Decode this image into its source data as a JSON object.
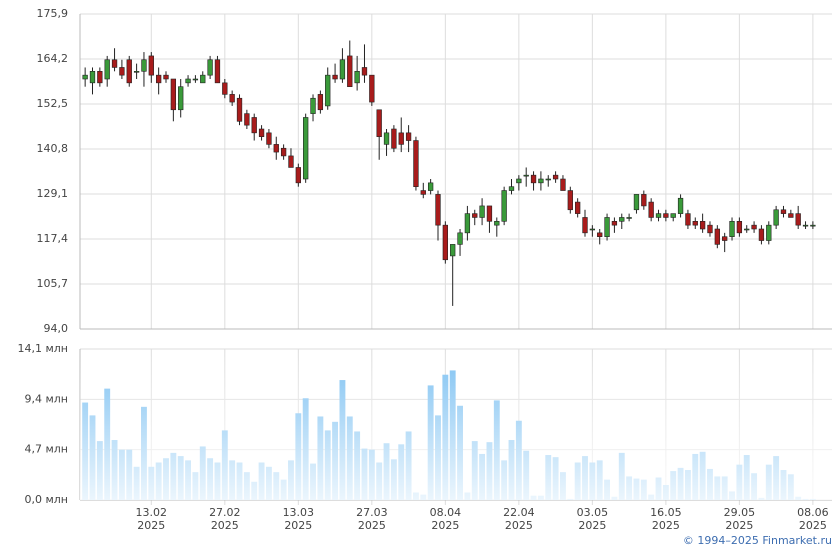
{
  "chart_data": {
    "type": "candlestick",
    "open": [
      159,
      158,
      161,
      159,
      164,
      162,
      164,
      161,
      161,
      165,
      160,
      160,
      159,
      151,
      158,
      159,
      158,
      160,
      164,
      158,
      155,
      154,
      150,
      149,
      146,
      145,
      142,
      141,
      139,
      136,
      133,
      150,
      155,
      152,
      160,
      159,
      165,
      158,
      162,
      160,
      151,
      142,
      146,
      145,
      145,
      143,
      130,
      130,
      129,
      121,
      113,
      116,
      119,
      124,
      123,
      126,
      121,
      122,
      130,
      132,
      134,
      134,
      132,
      133,
      134,
      133,
      130,
      127,
      123,
      120,
      119,
      118,
      122,
      122,
      123,
      125,
      129,
      127,
      123,
      124,
      123,
      124,
      124,
      122,
      122,
      121,
      120,
      118,
      118,
      122,
      120,
      121,
      120,
      117,
      121,
      125,
      124,
      124,
      121,
      121
    ],
    "high": [
      162,
      162,
      162,
      165,
      167,
      164,
      165,
      163,
      166,
      166,
      162,
      161,
      159,
      159,
      160,
      160,
      161,
      165,
      165,
      159,
      156,
      155,
      151,
      150,
      147,
      146,
      144,
      142,
      141,
      137,
      150,
      155,
      156,
      162,
      163,
      167,
      169,
      165,
      168,
      160,
      151,
      146,
      147,
      149,
      147,
      144,
      132,
      133,
      130,
      122,
      116,
      120,
      126,
      125,
      128,
      126,
      123,
      131,
      133,
      134,
      136,
      135,
      135,
      134,
      135,
      134,
      131,
      128,
      125,
      121,
      120,
      124,
      123,
      124,
      124,
      129,
      130,
      128,
      125,
      125,
      124,
      129,
      125,
      123,
      124,
      122,
      121,
      119,
      123,
      123,
      121,
      122,
      121,
      122,
      126,
      126,
      125,
      126,
      122,
      122
    ],
    "low": [
      157,
      155,
      157,
      157,
      161,
      159,
      157,
      159,
      157,
      158,
      155,
      158,
      148,
      149,
      157,
      158,
      158,
      159,
      158,
      154,
      152,
      147,
      146,
      143,
      143,
      141,
      138,
      138,
      136,
      131,
      132,
      148,
      150,
      151,
      158,
      158,
      157,
      156,
      158,
      152,
      138,
      139,
      140,
      140,
      140,
      130,
      128,
      129,
      117,
      111,
      100,
      113,
      117,
      121,
      121,
      119,
      118,
      121,
      129,
      130,
      131,
      130,
      130,
      131,
      132,
      130,
      124,
      123,
      118,
      118,
      116,
      117,
      119,
      120,
      122,
      124,
      125,
      122,
      122,
      122,
      122,
      123,
      120,
      120,
      119,
      118,
      115,
      114,
      117,
      118,
      119,
      119,
      116,
      116,
      120,
      123,
      123,
      120,
      120,
      120
    ],
    "close": [
      160,
      161,
      158,
      164,
      162,
      160,
      158,
      161,
      164,
      160,
      158,
      159,
      151,
      157,
      159,
      159,
      160,
      164,
      158,
      155,
      153,
      148,
      147,
      145,
      144,
      142,
      140,
      139,
      136,
      132,
      149,
      154,
      151,
      160,
      159,
      164,
      157,
      161,
      160,
      153,
      144,
      145,
      141,
      142,
      143,
      131,
      129,
      132,
      121,
      112,
      116,
      119,
      124,
      123,
      126,
      122,
      122,
      130,
      131,
      133,
      134,
      132,
      133,
      133,
      133,
      130,
      125,
      124,
      119,
      120,
      118,
      123,
      121,
      123,
      123,
      129,
      126,
      123,
      124,
      123,
      124,
      128,
      121,
      121,
      120,
      119,
      116,
      117,
      122,
      119,
      120,
      120,
      117,
      121,
      125,
      124,
      123,
      121,
      121,
      121
    ],
    "up_color": "#3a9a3a",
    "down_color": "#a81c1c",
    "xlim": [
      -0.7,
      101.6
    ],
    "xticks": [
      {
        "value": 9,
        "label": "13.02\n2025"
      },
      {
        "value": 19,
        "label": "27.02\n2025"
      },
      {
        "value": 29,
        "label": "13.03\n2025"
      },
      {
        "value": 39,
        "label": "27.03\n2025"
      },
      {
        "value": 49,
        "label": "08.04\n2025"
      },
      {
        "value": 59,
        "label": "22.04\n2025"
      },
      {
        "value": 69,
        "label": "03.05\n2025"
      },
      {
        "value": 79,
        "label": "16.05\n2025"
      },
      {
        "value": 89,
        "label": "29.05\n2025"
      },
      {
        "value": 99,
        "label": "08.06\n2025"
      }
    ],
    "ylim": [
      94.0,
      175.9
    ],
    "yticks": [
      {
        "value": 94.0,
        "label": "94,0"
      },
      {
        "value": 105.7,
        "label": "105,7"
      },
      {
        "value": 117.4,
        "label": "117,4"
      },
      {
        "value": 129.1,
        "label": "129,1"
      },
      {
        "value": 140.8,
        "label": "140,8"
      },
      {
        "value": 152.5,
        "label": "152,5"
      },
      {
        "value": 164.2,
        "label": "164,2"
      },
      {
        "value": 175.9,
        "label": "175,9"
      }
    ],
    "grid": true,
    "volume": {
      "color": "#7fc2f2",
      "values": [
        9.1,
        7.9,
        5.5,
        10.4,
        5.6,
        4.7,
        4.7,
        3.1,
        8.7,
        3.1,
        3.5,
        3.9,
        4.4,
        4.1,
        3.7,
        2.6,
        5.0,
        3.9,
        3.5,
        6.5,
        3.7,
        3.5,
        2.6,
        1.7,
        3.5,
        3.1,
        2.6,
        1.9,
        3.7,
        8.1,
        9.5,
        3.4,
        7.8,
        6.5,
        7.3,
        11.2,
        7.8,
        6.4,
        4.8,
        4.7,
        3.5,
        5.3,
        3.8,
        5.2,
        6.4,
        0.7,
        0.5,
        10.7,
        7.9,
        11.7,
        12.1,
        8.8,
        0.7,
        5.5,
        4.3,
        5.4,
        9.3,
        3.7,
        5.6,
        7.4,
        4.6,
        0.4,
        0.4,
        4.2,
        4.0,
        2.6,
        0.1,
        3.5,
        4.1,
        3.5,
        3.7,
        1.9,
        0.3,
        4.4,
        2.2,
        2.0,
        1.9,
        0.5,
        2.1,
        1.4,
        2.7,
        3.0,
        2.8,
        4.3,
        4.5,
        2.9,
        2.2,
        2.2,
        0.8,
        3.3,
        4.2,
        2.5,
        0.2,
        3.3,
        4.1,
        2.8,
        2.4,
        0.3,
        0.1,
        0.1
      ],
      "ylim": [
        0,
        14.1
      ],
      "yticks": [
        {
          "value": 0,
          "label": "0,0 млн"
        },
        {
          "value": 4.7,
          "label": "4,7 млн"
        },
        {
          "value": 9.4,
          "label": "9,4 млн"
        },
        {
          "value": 14.1,
          "label": "14,1 млн"
        }
      ]
    }
  },
  "footer": "© 1994–2025 Finmarket.ru"
}
